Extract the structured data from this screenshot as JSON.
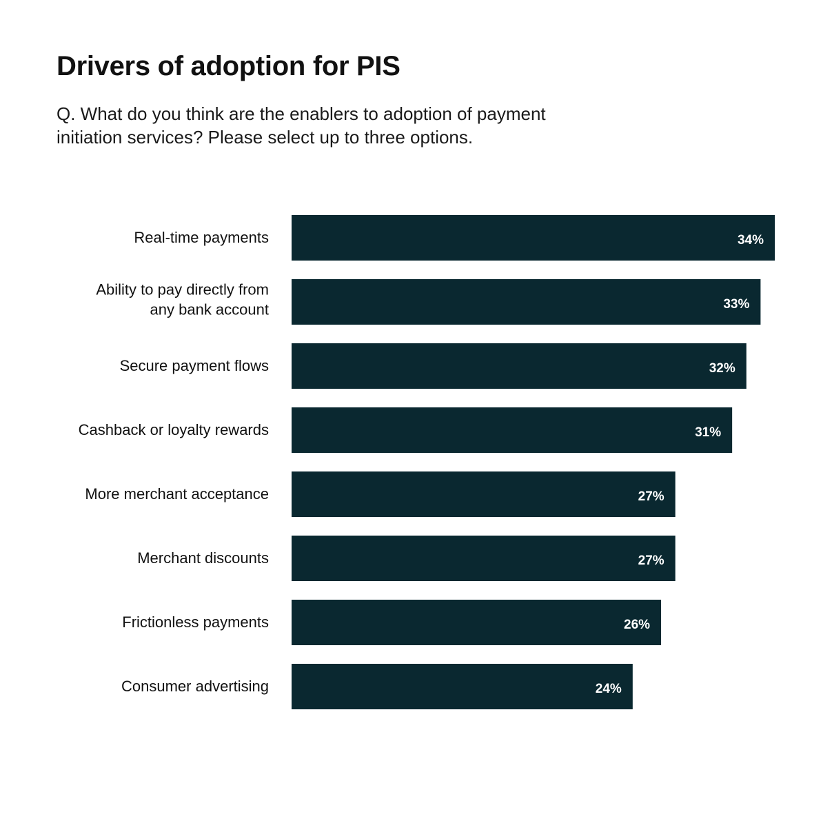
{
  "header": {
    "title": "Drivers of adoption for PIS",
    "subtitle": "Q. What do you think are the enablers to adoption of payment\ninitiation services?  Please select up to three options."
  },
  "colors": {
    "bar": "#0a2830",
    "value_text": "#ffffff",
    "label_text": "#111111",
    "background": "#ffffff"
  },
  "chart_data": {
    "type": "bar",
    "orientation": "horizontal",
    "categories": [
      "Real-time payments",
      "Ability to pay directly from\nany bank account",
      "Secure payment flows",
      "Cashback or loyalty rewards",
      "More merchant acceptance",
      "Merchant discounts",
      "Frictionless payments",
      "Consumer advertising"
    ],
    "values": [
      34,
      33,
      32,
      31,
      27,
      27,
      26,
      24
    ],
    "value_labels": [
      "34%",
      "33%",
      "32%",
      "31%",
      "27%",
      "27%",
      "26%",
      "24%"
    ],
    "unit": "%",
    "xlim": [
      0,
      34
    ],
    "grid": false,
    "legend": "none"
  }
}
